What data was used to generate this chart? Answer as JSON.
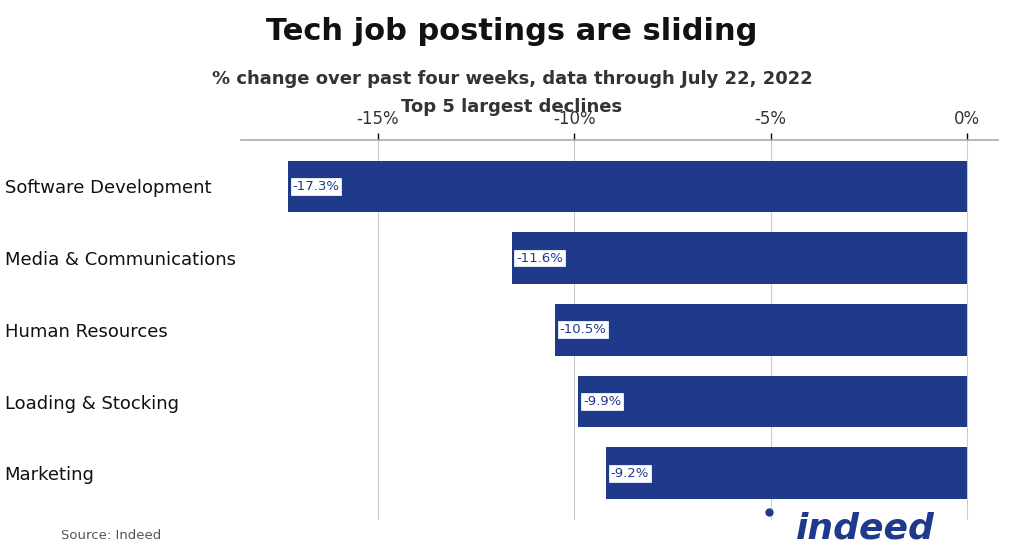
{
  "title": "Tech job postings are sliding",
  "subtitle_line1": "% change over past four weeks, data through July 22, 2022",
  "subtitle_line2": "Top 5 largest declines",
  "categories": [
    "Software Development",
    "Media & Communications",
    "Human Resources",
    "Loading & Stocking",
    "Marketing"
  ],
  "values": [
    -17.3,
    -11.6,
    -10.5,
    -9.9,
    -9.2
  ],
  "labels": [
    "-17.3%",
    "-11.6%",
    "-10.5%",
    "-9.9%",
    "-9.2%"
  ],
  "bar_color": "#1f3a8a",
  "label_box_color": "#ffffff",
  "label_border_color": "#1f3a8a",
  "label_text_color": "#1f3a8a",
  "xlim": [
    -18.5,
    0.8
  ],
  "xticks": [
    -15,
    -10,
    -5,
    0
  ],
  "xtick_labels": [
    "-15%",
    "-10%",
    "-5%",
    "0%"
  ],
  "background_color": "#ffffff",
  "source_text": "Source: Indeed",
  "title_fontsize": 22,
  "subtitle_fontsize": 13,
  "category_fontsize": 13,
  "tick_fontsize": 12,
  "bar_height": 0.72,
  "indeed_logo_color": "#1f3a8a",
  "grid_color": "#cccccc",
  "spine_color": "#aaaaaa"
}
